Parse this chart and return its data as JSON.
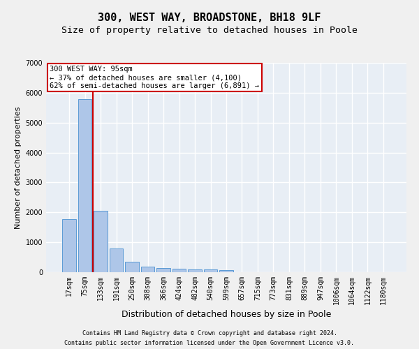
{
  "title1": "300, WEST WAY, BROADSTONE, BH18 9LF",
  "title2": "Size of property relative to detached houses in Poole",
  "xlabel": "Distribution of detached houses by size in Poole",
  "ylabel": "Number of detached properties",
  "categories": [
    "17sqm",
    "75sqm",
    "133sqm",
    "191sqm",
    "250sqm",
    "308sqm",
    "366sqm",
    "424sqm",
    "482sqm",
    "540sqm",
    "599sqm",
    "657sqm",
    "715sqm",
    "773sqm",
    "831sqm",
    "889sqm",
    "947sqm",
    "1006sqm",
    "1064sqm",
    "1122sqm",
    "1180sqm"
  ],
  "values": [
    1780,
    5780,
    2060,
    800,
    340,
    195,
    130,
    110,
    100,
    90,
    70,
    0,
    0,
    0,
    0,
    0,
    0,
    0,
    0,
    0,
    0
  ],
  "bar_color": "#aec6e8",
  "bar_edge_color": "#5b9bd5",
  "highlight_line_color": "#cc0000",
  "annotation_text": "300 WEST WAY: 95sqm\n← 37% of detached houses are smaller (4,100)\n62% of semi-detached houses are larger (6,891) →",
  "annotation_box_color": "#ffffff",
  "annotation_box_edge_color": "#cc0000",
  "ylim": [
    0,
    7000
  ],
  "yticks": [
    0,
    1000,
    2000,
    3000,
    4000,
    5000,
    6000,
    7000
  ],
  "bg_color": "#e8eef5",
  "grid_color": "#ffffff",
  "fig_bg_color": "#f0f0f0",
  "footer1": "Contains HM Land Registry data © Crown copyright and database right 2024.",
  "footer2": "Contains public sector information licensed under the Open Government Licence v3.0.",
  "title_fontsize": 11,
  "subtitle_fontsize": 9.5,
  "xlabel_fontsize": 9,
  "ylabel_fontsize": 8,
  "tick_fontsize": 7,
  "ann_fontsize": 7.5,
  "footer_fontsize": 6
}
